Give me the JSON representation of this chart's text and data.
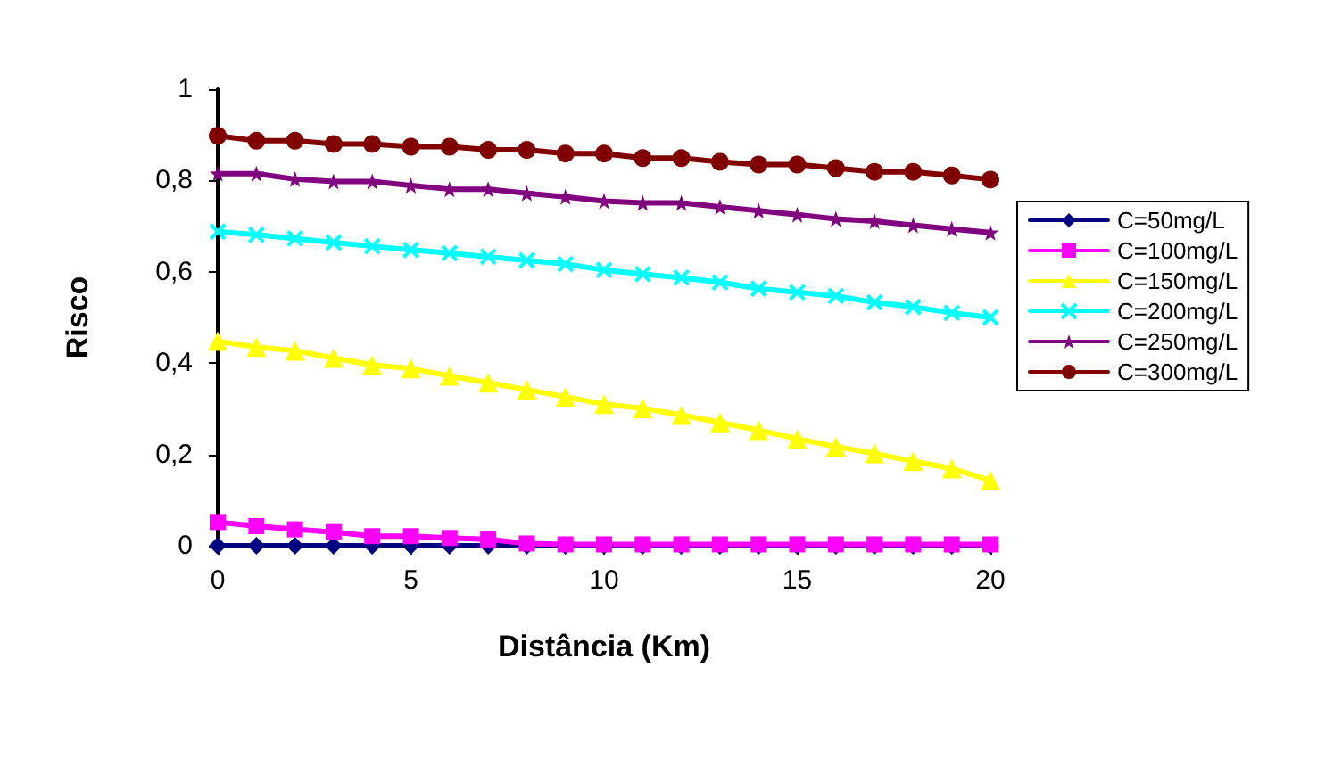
{
  "chart_data": {
    "type": "line",
    "xlabel": "Distância (Km)",
    "ylabel": "Risco",
    "x": [
      0,
      1,
      2,
      3,
      4,
      5,
      6,
      7,
      8,
      9,
      10,
      11,
      12,
      13,
      14,
      15,
      16,
      17,
      18,
      19,
      20
    ],
    "xlim": [
      0,
      20
    ],
    "xticks": [
      0,
      5,
      10,
      15,
      20
    ],
    "ylim": [
      0,
      1
    ],
    "yticks": [
      0,
      {
        "value": 0.2,
        "label": "0,2"
      },
      {
        "value": 0.4,
        "label": "0,4"
      },
      {
        "value": 0.6,
        "label": "0,6"
      },
      {
        "value": 0.8,
        "label": "0,8"
      },
      1
    ],
    "grid": false,
    "legend": "right",
    "series": [
      {
        "name": "C=50mg/L",
        "color": "#000080",
        "marker": "diamond",
        "values": [
          0,
          0,
          0,
          0,
          0,
          0,
          0,
          0,
          0,
          0,
          0,
          0,
          0,
          0,
          0,
          0,
          0,
          0,
          0,
          0,
          0
        ]
      },
      {
        "name": "C=100mg/L",
        "color": "#ff00ff",
        "marker": "square",
        "values": [
          0.052,
          0.043,
          0.036,
          0.03,
          0.021,
          0.021,
          0.017,
          0.014,
          0.005,
          0.003,
          0.003,
          0.003,
          0.003,
          0.003,
          0.003,
          0.003,
          0.003,
          0.003,
          0.003,
          0.003,
          0.003
        ]
      },
      {
        "name": "C=150mg/L",
        "color": "#ffff00",
        "marker": "triangle",
        "values": [
          0.448,
          0.435,
          0.427,
          0.411,
          0.396,
          0.388,
          0.372,
          0.357,
          0.342,
          0.326,
          0.31,
          0.301,
          0.286,
          0.27,
          0.253,
          0.234,
          0.217,
          0.202,
          0.185,
          0.169,
          0.143
        ]
      },
      {
        "name": "C=200mg/L",
        "color": "#00ffff",
        "marker": "cross",
        "values": [
          0.688,
          0.681,
          0.673,
          0.664,
          0.656,
          0.648,
          0.641,
          0.633,
          0.625,
          0.617,
          0.604,
          0.595,
          0.587,
          0.577,
          0.563,
          0.555,
          0.547,
          0.533,
          0.523,
          0.51,
          0.5
        ]
      },
      {
        "name": "C=250mg/L",
        "color": "#800080",
        "marker": "star",
        "values": [
          0.815,
          0.815,
          0.803,
          0.798,
          0.798,
          0.789,
          0.781,
          0.781,
          0.772,
          0.764,
          0.755,
          0.751,
          0.751,
          0.742,
          0.734,
          0.725,
          0.716,
          0.711,
          0.702,
          0.694,
          0.686
        ]
      },
      {
        "name": "C=300mg/L",
        "color": "#800000",
        "marker": "circle",
        "values": [
          0.898,
          0.887,
          0.887,
          0.88,
          0.88,
          0.874,
          0.874,
          0.867,
          0.867,
          0.859,
          0.859,
          0.849,
          0.849,
          0.841,
          0.835,
          0.835,
          0.827,
          0.819,
          0.819,
          0.811,
          0.802
        ]
      }
    ]
  }
}
